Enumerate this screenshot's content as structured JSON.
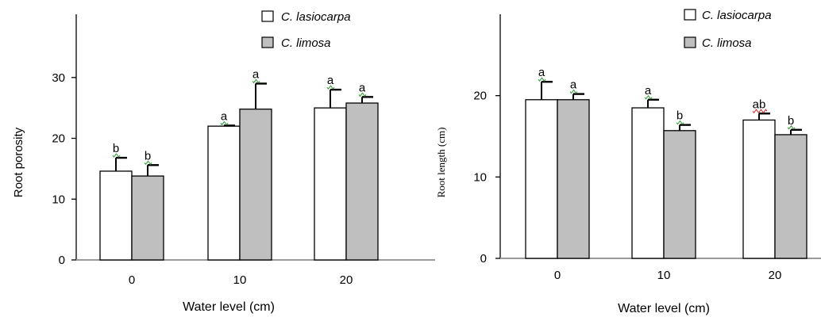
{
  "chart_data": [
    {
      "type": "bar",
      "categories": [
        "0",
        "10",
        "20"
      ],
      "xlabel": "Water level (cm)",
      "ylabel": "Root porosity",
      "ylim": [
        0,
        40
      ],
      "yticks": [
        0,
        10,
        20,
        30
      ],
      "legend_position": "top-right",
      "series": [
        {
          "name": "C. lasiocarpa",
          "color": "#ffffff",
          "values": [
            14.6,
            22.0,
            25.0
          ],
          "errors": [
            2.2,
            0.1,
            3.0
          ],
          "letters": [
            "b",
            "a",
            "a"
          ]
        },
        {
          "name": "C. limosa",
          "color": "#bfbfbf",
          "values": [
            13.8,
            24.8,
            25.8
          ],
          "errors": [
            1.8,
            4.2,
            1.0
          ],
          "letters": [
            "b",
            "a",
            "a"
          ]
        }
      ]
    },
    {
      "type": "bar",
      "categories": [
        "0",
        "10",
        "20"
      ],
      "xlabel": "Water level (cm)",
      "ylabel": "Root length (cm)",
      "ylim": [
        0,
        30
      ],
      "yticks": [
        0,
        10,
        20
      ],
      "legend_position": "top-right",
      "series": [
        {
          "name": "C. lasiocarpa",
          "color": "#ffffff",
          "values": [
            19.5,
            18.5,
            17.0
          ],
          "errors": [
            2.2,
            1.0,
            0.8
          ],
          "letters": [
            "a",
            "a",
            "ab"
          ]
        },
        {
          "name": "C. limosa",
          "color": "#bfbfbf",
          "values": [
            19.5,
            15.7,
            15.2
          ],
          "errors": [
            0.7,
            0.7,
            0.6
          ],
          "letters": [
            "a",
            "b",
            "b"
          ]
        }
      ]
    }
  ]
}
